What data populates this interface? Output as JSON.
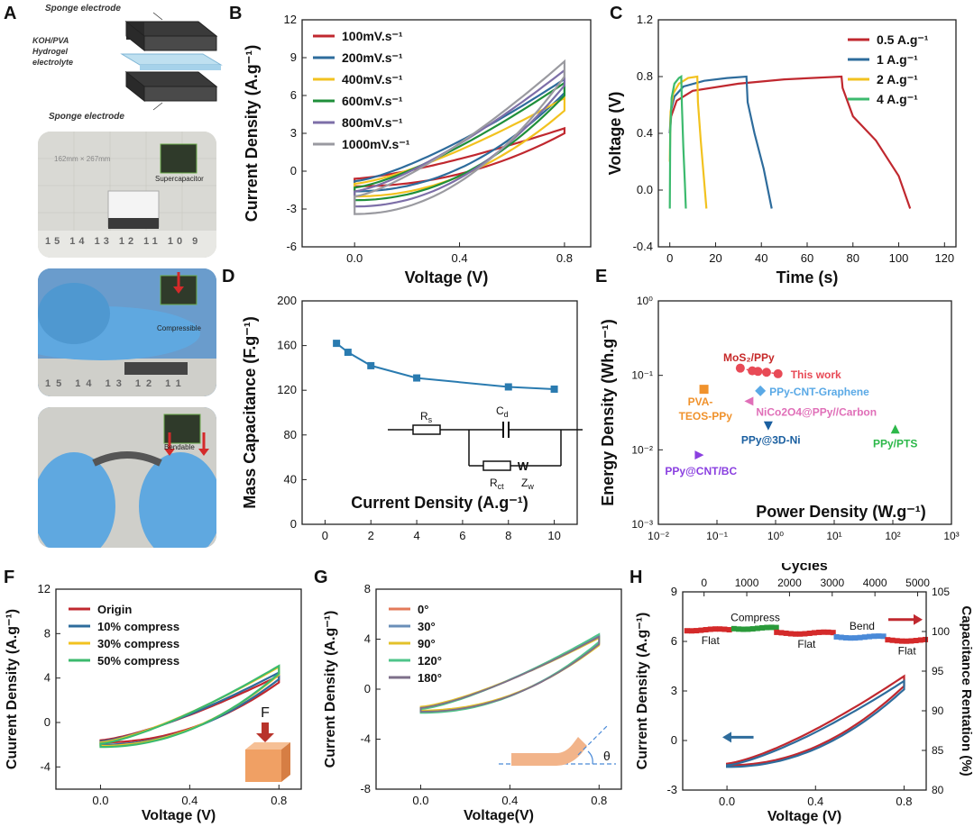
{
  "panels": {
    "A": {
      "label": "A",
      "sponge_top": "Sponge electrode",
      "electrolyte": "KOH/PVA Hydrogel electrolyte",
      "sponge_bottom": "Sponge electrode",
      "photo1_text": "Supercapacitor",
      "photo1_ruler": "15 14 13 12 11 10 9",
      "photo1_top": "162mm × 267mm",
      "photo2_text": "Compressible",
      "photo2_ruler": "15 14 13 12 11",
      "photo3_text": "Bendable",
      "colors": {
        "glove": "#5fa8e0",
        "sponge": "#2f3a2a",
        "mat": "#d9d9d4"
      }
    },
    "B": {
      "label": "B"
    },
    "C": {
      "label": "C"
    },
    "D": {
      "label": "D",
      "circuit": {
        "rs": "R",
        "rs_sub": "s",
        "cd": "C",
        "cd_sub": "d",
        "rct": "R",
        "rct_sub": "ct",
        "zw": "Z",
        "zw_sub": "w",
        "w": "W"
      }
    },
    "E": {
      "label": "E"
    },
    "F": {
      "label": "F",
      "force": "F"
    },
    "G": {
      "label": "G",
      "theta": "θ"
    },
    "H": {
      "label": "H"
    }
  },
  "chart_data": [
    {
      "id": "B",
      "type": "line",
      "title": "",
      "xlabel": "Voltage (V)",
      "ylabel": "Current Density (A.g⁻¹)",
      "xlim": [
        -0.2,
        0.9
      ],
      "ylim": [
        -6,
        12
      ],
      "xticks": [
        "0.0",
        "0.4",
        "0.8"
      ],
      "xtick_values": [
        0,
        0.4,
        0.8
      ],
      "yticks": [
        "-6",
        "-3",
        "0",
        "3",
        "6",
        "9",
        "12"
      ],
      "ytick_values": [
        -6,
        -3,
        0,
        3,
        6,
        9,
        12
      ],
      "legend_position": "top-left",
      "series": [
        {
          "name": "100mV.s⁻¹",
          "color": "#c0282f",
          "loop": {
            "bottom_start": -1.2,
            "top_start": -0.6,
            "end_top": 3.4,
            "end_bottom": 3.0
          }
        },
        {
          "name": "200mV.s⁻¹",
          "color": "#2e6c9c",
          "loop": {
            "bottom_start": -1.6,
            "top_start": -0.8,
            "end_top": 7.3,
            "end_bottom": 6.2
          }
        },
        {
          "name": "400mV.s⁻¹",
          "color": "#f2c21f",
          "loop": {
            "bottom_start": -2.0,
            "top_start": -1.0,
            "end_top": 5.8,
            "end_bottom": 4.8
          }
        },
        {
          "name": "600mV.s⁻¹",
          "color": "#1f8f3a",
          "loop": {
            "bottom_start": -2.3,
            "top_start": -1.3,
            "end_top": 7.0,
            "end_bottom": 6.0
          }
        },
        {
          "name": "800mV.s⁻¹",
          "color": "#7d6fa8",
          "loop": {
            "bottom_start": -2.8,
            "top_start": -1.6,
            "end_top": 8.0,
            "end_bottom": 6.8
          }
        },
        {
          "name": "1000mV.s⁻¹",
          "color": "#9a9aa0",
          "loop": {
            "bottom_start": -3.4,
            "top_start": -2.0,
            "end_top": 8.7,
            "end_bottom": 7.5
          }
        }
      ]
    },
    {
      "id": "C",
      "type": "line",
      "title": "",
      "xlabel": "Time (s)",
      "ylabel": "Voltage (V)",
      "xlim": [
        -5,
        125
      ],
      "ylim": [
        -0.4,
        1.2
      ],
      "xticks": [
        "0",
        "20",
        "40",
        "60",
        "80",
        "100",
        "120"
      ],
      "xtick_values": [
        0,
        20,
        40,
        60,
        80,
        100,
        120
      ],
      "yticks": [
        "-0.4",
        "0.0",
        "0.4",
        "0.8",
        "1.2"
      ],
      "ytick_values": [
        -0.4,
        0,
        0.4,
        0.8,
        1.2
      ],
      "legend_position": "top-right",
      "series": [
        {
          "name": "0.5 A.g⁻¹",
          "color": "#c0282f",
          "x": [
            0,
            0.6,
            3,
            10,
            30,
            50,
            75,
            75.5,
            80,
            90,
            100,
            105
          ],
          "y": [
            0.4,
            0.52,
            0.63,
            0.7,
            0.75,
            0.78,
            0.8,
            0.72,
            0.52,
            0.35,
            0.1,
            -0.13
          ]
        },
        {
          "name": "1 A.g⁻¹",
          "color": "#2e6c9c",
          "x": [
            0,
            0.4,
            2,
            6,
            15,
            25,
            33.5,
            34,
            37,
            41,
            44.5
          ],
          "y": [
            0.4,
            0.55,
            0.66,
            0.73,
            0.77,
            0.79,
            0.8,
            0.62,
            0.4,
            0.15,
            -0.13
          ]
        },
        {
          "name": "2 A.g⁻¹",
          "color": "#f2c21f",
          "x": [
            0,
            0.3,
            1.5,
            4,
            8,
            12,
            12.3,
            13.5,
            14.8,
            16
          ],
          "y": [
            0.2,
            0.55,
            0.68,
            0.75,
            0.79,
            0.8,
            0.62,
            0.35,
            0.1,
            -0.13
          ]
        },
        {
          "name": "4 A.g⁻¹",
          "color": "#3cba6e",
          "x": [
            0,
            0.2,
            0.8,
            2,
            4,
            5,
            5.3,
            5.9,
            6.6,
            7
          ],
          "y": [
            -0.13,
            0.4,
            0.65,
            0.75,
            0.79,
            0.8,
            0.6,
            0.3,
            0.05,
            -0.13
          ]
        }
      ]
    },
    {
      "id": "D",
      "type": "line",
      "title": "",
      "xlabel": "Current Density (A.g⁻¹)",
      "ylabel": "Mass Capacitance (F.g⁻¹)",
      "xlim": [
        -1,
        11
      ],
      "ylim": [
        0,
        200
      ],
      "xticks": [
        "0",
        "2",
        "4",
        "6",
        "8",
        "10"
      ],
      "xtick_values": [
        0,
        2,
        4,
        6,
        8,
        10
      ],
      "yticks": [
        "0",
        "40",
        "80",
        "120",
        "160",
        "200"
      ],
      "ytick_values": [
        0,
        40,
        80,
        120,
        160,
        200
      ],
      "series": [
        {
          "name": "",
          "color": "#2a7bb0",
          "x": [
            0.5,
            1,
            2,
            4,
            8,
            10
          ],
          "y": [
            162,
            154,
            142,
            131,
            123,
            121
          ]
        }
      ]
    },
    {
      "id": "E",
      "type": "scatter",
      "title": "",
      "xlabel": "Power Density (W.g⁻¹)",
      "ylabel": "Energy Density (Wh.g⁻¹)",
      "xscale": "log",
      "yscale": "log",
      "xlim": [
        0.01,
        1000
      ],
      "ylim": [
        0.001,
        1
      ],
      "xticks": [
        "10⁻²",
        "10⁻¹",
        "10⁰",
        "10¹",
        "10²",
        "10³"
      ],
      "xtick_values": [
        0.01,
        0.1,
        1,
        10,
        100,
        1000
      ],
      "yticks": [
        "10⁻³",
        "10⁻²",
        "10⁻¹",
        "10⁰"
      ],
      "ytick_values": [
        0.001,
        0.01,
        0.1,
        1
      ],
      "line_series": {
        "name": "This work",
        "color": "#e84a56",
        "label_top": "MoS₂/PPy",
        "x": [
          0.25,
          0.4,
          0.5,
          0.7,
          1.1
        ],
        "y": [
          0.125,
          0.115,
          0.113,
          0.11,
          0.105
        ]
      },
      "points": [
        {
          "name": "PVA-TEOS-PPy",
          "color": "#f0922c",
          "shape": "square",
          "x": 0.06,
          "y": 0.065
        },
        {
          "name": "PPy-CNT-Graphene",
          "color": "#5aa9e6",
          "shape": "diamond",
          "x": 0.55,
          "y": 0.062
        },
        {
          "name": "NiCo2O4@PPy//Carbon",
          "color": "#e06fb8",
          "shape": "triangle-left",
          "x": 0.35,
          "y": 0.045
        },
        {
          "name": "PPy@3D-Ni",
          "color": "#1a5fa0",
          "shape": "triangle-down",
          "x": 0.75,
          "y": 0.021
        },
        {
          "name": "PPy/PTS",
          "color": "#2db84a",
          "shape": "triangle-up",
          "x": 110,
          "y": 0.019
        },
        {
          "name": "PPy@CNT/BC",
          "color": "#8a3fe0",
          "shape": "triangle-right",
          "x": 0.05,
          "y": 0.0085
        }
      ]
    },
    {
      "id": "F",
      "type": "line",
      "title": "",
      "xlabel": "Voltage (V)",
      "ylabel": "Cuurent Density (A.g⁻¹)",
      "xlim": [
        -0.2,
        0.9
      ],
      "ylim": [
        -6,
        12
      ],
      "xticks": [
        "0.0",
        "0.4",
        "0.8"
      ],
      "xtick_values": [
        0,
        0.4,
        0.8
      ],
      "yticks": [
        "-4",
        "0",
        "4",
        "8",
        "12"
      ],
      "ytick_values": [
        -4,
        0,
        4,
        8,
        12
      ],
      "legend_position": "top-left",
      "series": [
        {
          "name": "Origin",
          "color": "#c0282f",
          "loop": {
            "bottom_start": -1.8,
            "top_start": -1.6,
            "end_top": 4.2,
            "end_bottom": 3.6
          }
        },
        {
          "name": "10% compress",
          "color": "#2e6c9c",
          "loop": {
            "bottom_start": -2.0,
            "top_start": -1.7,
            "end_top": 4.5,
            "end_bottom": 3.9
          }
        },
        {
          "name": "30% compress",
          "color": "#f2c21f",
          "loop": {
            "bottom_start": -2.1,
            "top_start": -1.8,
            "end_top": 5.0,
            "end_bottom": 4.3
          }
        },
        {
          "name": "50% compress",
          "color": "#3cba6e",
          "loop": {
            "bottom_start": -2.2,
            "top_start": -1.9,
            "end_top": 5.1,
            "end_bottom": 4.4
          }
        }
      ]
    },
    {
      "id": "G",
      "type": "line",
      "title": "",
      "xlabel": "Voltage(V)",
      "ylabel": "Current Density (A.g⁻¹)",
      "xlim": [
        -0.2,
        0.9
      ],
      "ylim": [
        -8,
        8
      ],
      "xticks": [
        "0.0",
        "0.4",
        "0.8"
      ],
      "xtick_values": [
        0,
        0.4,
        0.8
      ],
      "yticks": [
        "-8",
        "-4",
        "0",
        "4",
        "8"
      ],
      "ytick_values": [
        -8,
        -4,
        0,
        4,
        8
      ],
      "legend_position": "top-left",
      "series": [
        {
          "name": "0°",
          "color": "#e37a5a",
          "loop": {
            "bottom_start": -1.8,
            "top_start": -1.5,
            "end_top": 4.2,
            "end_bottom": 3.6
          }
        },
        {
          "name": "30°",
          "color": "#6a8fb8",
          "loop": {
            "bottom_start": -1.8,
            "top_start": -1.5,
            "end_top": 4.3,
            "end_bottom": 3.7
          }
        },
        {
          "name": "90°",
          "color": "#e3c12a",
          "loop": {
            "bottom_start": -1.7,
            "top_start": -1.4,
            "end_top": 4.1,
            "end_bottom": 3.5
          }
        },
        {
          "name": "120°",
          "color": "#4fc48a",
          "loop": {
            "bottom_start": -1.9,
            "top_start": -1.6,
            "end_top": 4.4,
            "end_bottom": 3.8
          }
        },
        {
          "name": "180°",
          "color": "#7d6f8a",
          "loop": {
            "bottom_start": -1.8,
            "top_start": -1.5,
            "end_top": 4.2,
            "end_bottom": 3.6
          }
        }
      ]
    },
    {
      "id": "H",
      "type": "line",
      "title": "",
      "xlabel": "Voltage (V)",
      "ylabel": "Current Density (A.g⁻¹)",
      "x2label": "Cycles",
      "y2label": "Capacitance Rentation (%)",
      "xlim": [
        -0.2,
        0.9
      ],
      "ylim": [
        -3,
        9
      ],
      "xticks": [
        "0.0",
        "0.4",
        "0.8"
      ],
      "xtick_values": [
        0,
        0.4,
        0.8
      ],
      "yticks": [
        "-3",
        "0",
        "3",
        "6",
        "9"
      ],
      "ytick_values": [
        -3,
        0,
        3,
        6,
        9
      ],
      "x2lim": [
        -500,
        5200
      ],
      "x2ticks": [
        "0",
        "1000",
        "2000",
        "3000",
        "4000",
        "5000"
      ],
      "x2tick_values": [
        0,
        1000,
        2000,
        3000,
        4000,
        5000
      ],
      "y2lim": [
        80,
        105
      ],
      "y2ticks": [
        "80",
        "85",
        "90",
        "95",
        "100",
        "105"
      ],
      "y2tick_values": [
        80,
        85,
        90,
        95,
        100,
        105
      ],
      "cv_series": [
        {
          "name": "",
          "color": "#c0282f",
          "loop": {
            "bottom_start": -1.5,
            "top_start": -1.4,
            "end_top": 3.9,
            "end_bottom": 3.3
          }
        },
        {
          "name": "",
          "color": "#2e6c9c",
          "loop": {
            "bottom_start": -1.6,
            "top_start": -1.5,
            "end_top": 3.6,
            "end_bottom": 3.1
          }
        }
      ],
      "retention_segments": [
        {
          "label": "Flat",
          "color": "#d42a2a",
          "start": -400,
          "end": 700,
          "value": 100.2
        },
        {
          "label": "Compress",
          "color": "#2a9a3a",
          "start": 700,
          "end": 1700,
          "value": 100.4
        },
        {
          "label": "Flat",
          "color": "#d42a2a",
          "start": 1700,
          "end": 3100,
          "value": 99.8
        },
        {
          "label": "Bend",
          "color": "#4a8ad8",
          "start": 3100,
          "end": 4300,
          "value": 99.3
        },
        {
          "label": "Flat",
          "color": "#d42a2a",
          "start": 4300,
          "end": 5200,
          "value": 98.9
        }
      ]
    }
  ]
}
